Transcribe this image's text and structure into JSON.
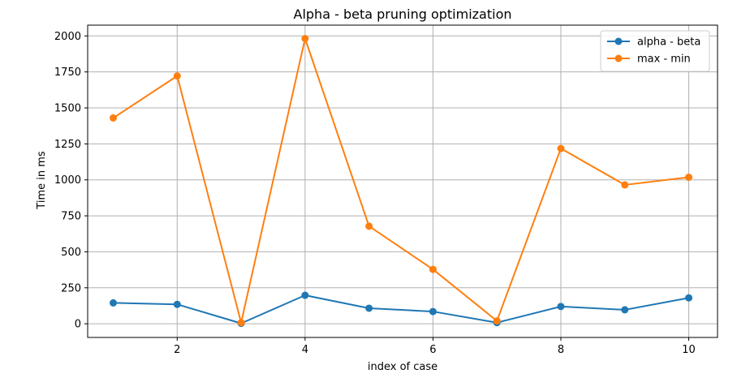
{
  "chart_data": {
    "type": "line",
    "title": "Alpha - beta pruning optimization",
    "xlabel": "index of case",
    "ylabel": "Time in ms",
    "x": [
      1,
      2,
      3,
      4,
      5,
      6,
      7,
      8,
      9,
      10
    ],
    "xlim": [
      0.6,
      10.45
    ],
    "ylim": [
      -95,
      2075
    ],
    "xticks": [
      2,
      4,
      6,
      8,
      10
    ],
    "yticks": [
      0,
      250,
      500,
      750,
      1000,
      1250,
      1500,
      1750,
      2000
    ],
    "grid": true,
    "legend_position": "top-right",
    "series": [
      {
        "name": "alpha - beta",
        "color": "#1f77b4",
        "marker": "circle",
        "values": [
          145,
          135,
          3,
          198,
          108,
          85,
          8,
          120,
          97,
          180
        ]
      },
      {
        "name": "max - min",
        "color": "#ff7f0e",
        "marker": "circle",
        "values": [
          1430,
          1722,
          8,
          1982,
          678,
          378,
          20,
          1218,
          965,
          1018
        ]
      }
    ]
  }
}
